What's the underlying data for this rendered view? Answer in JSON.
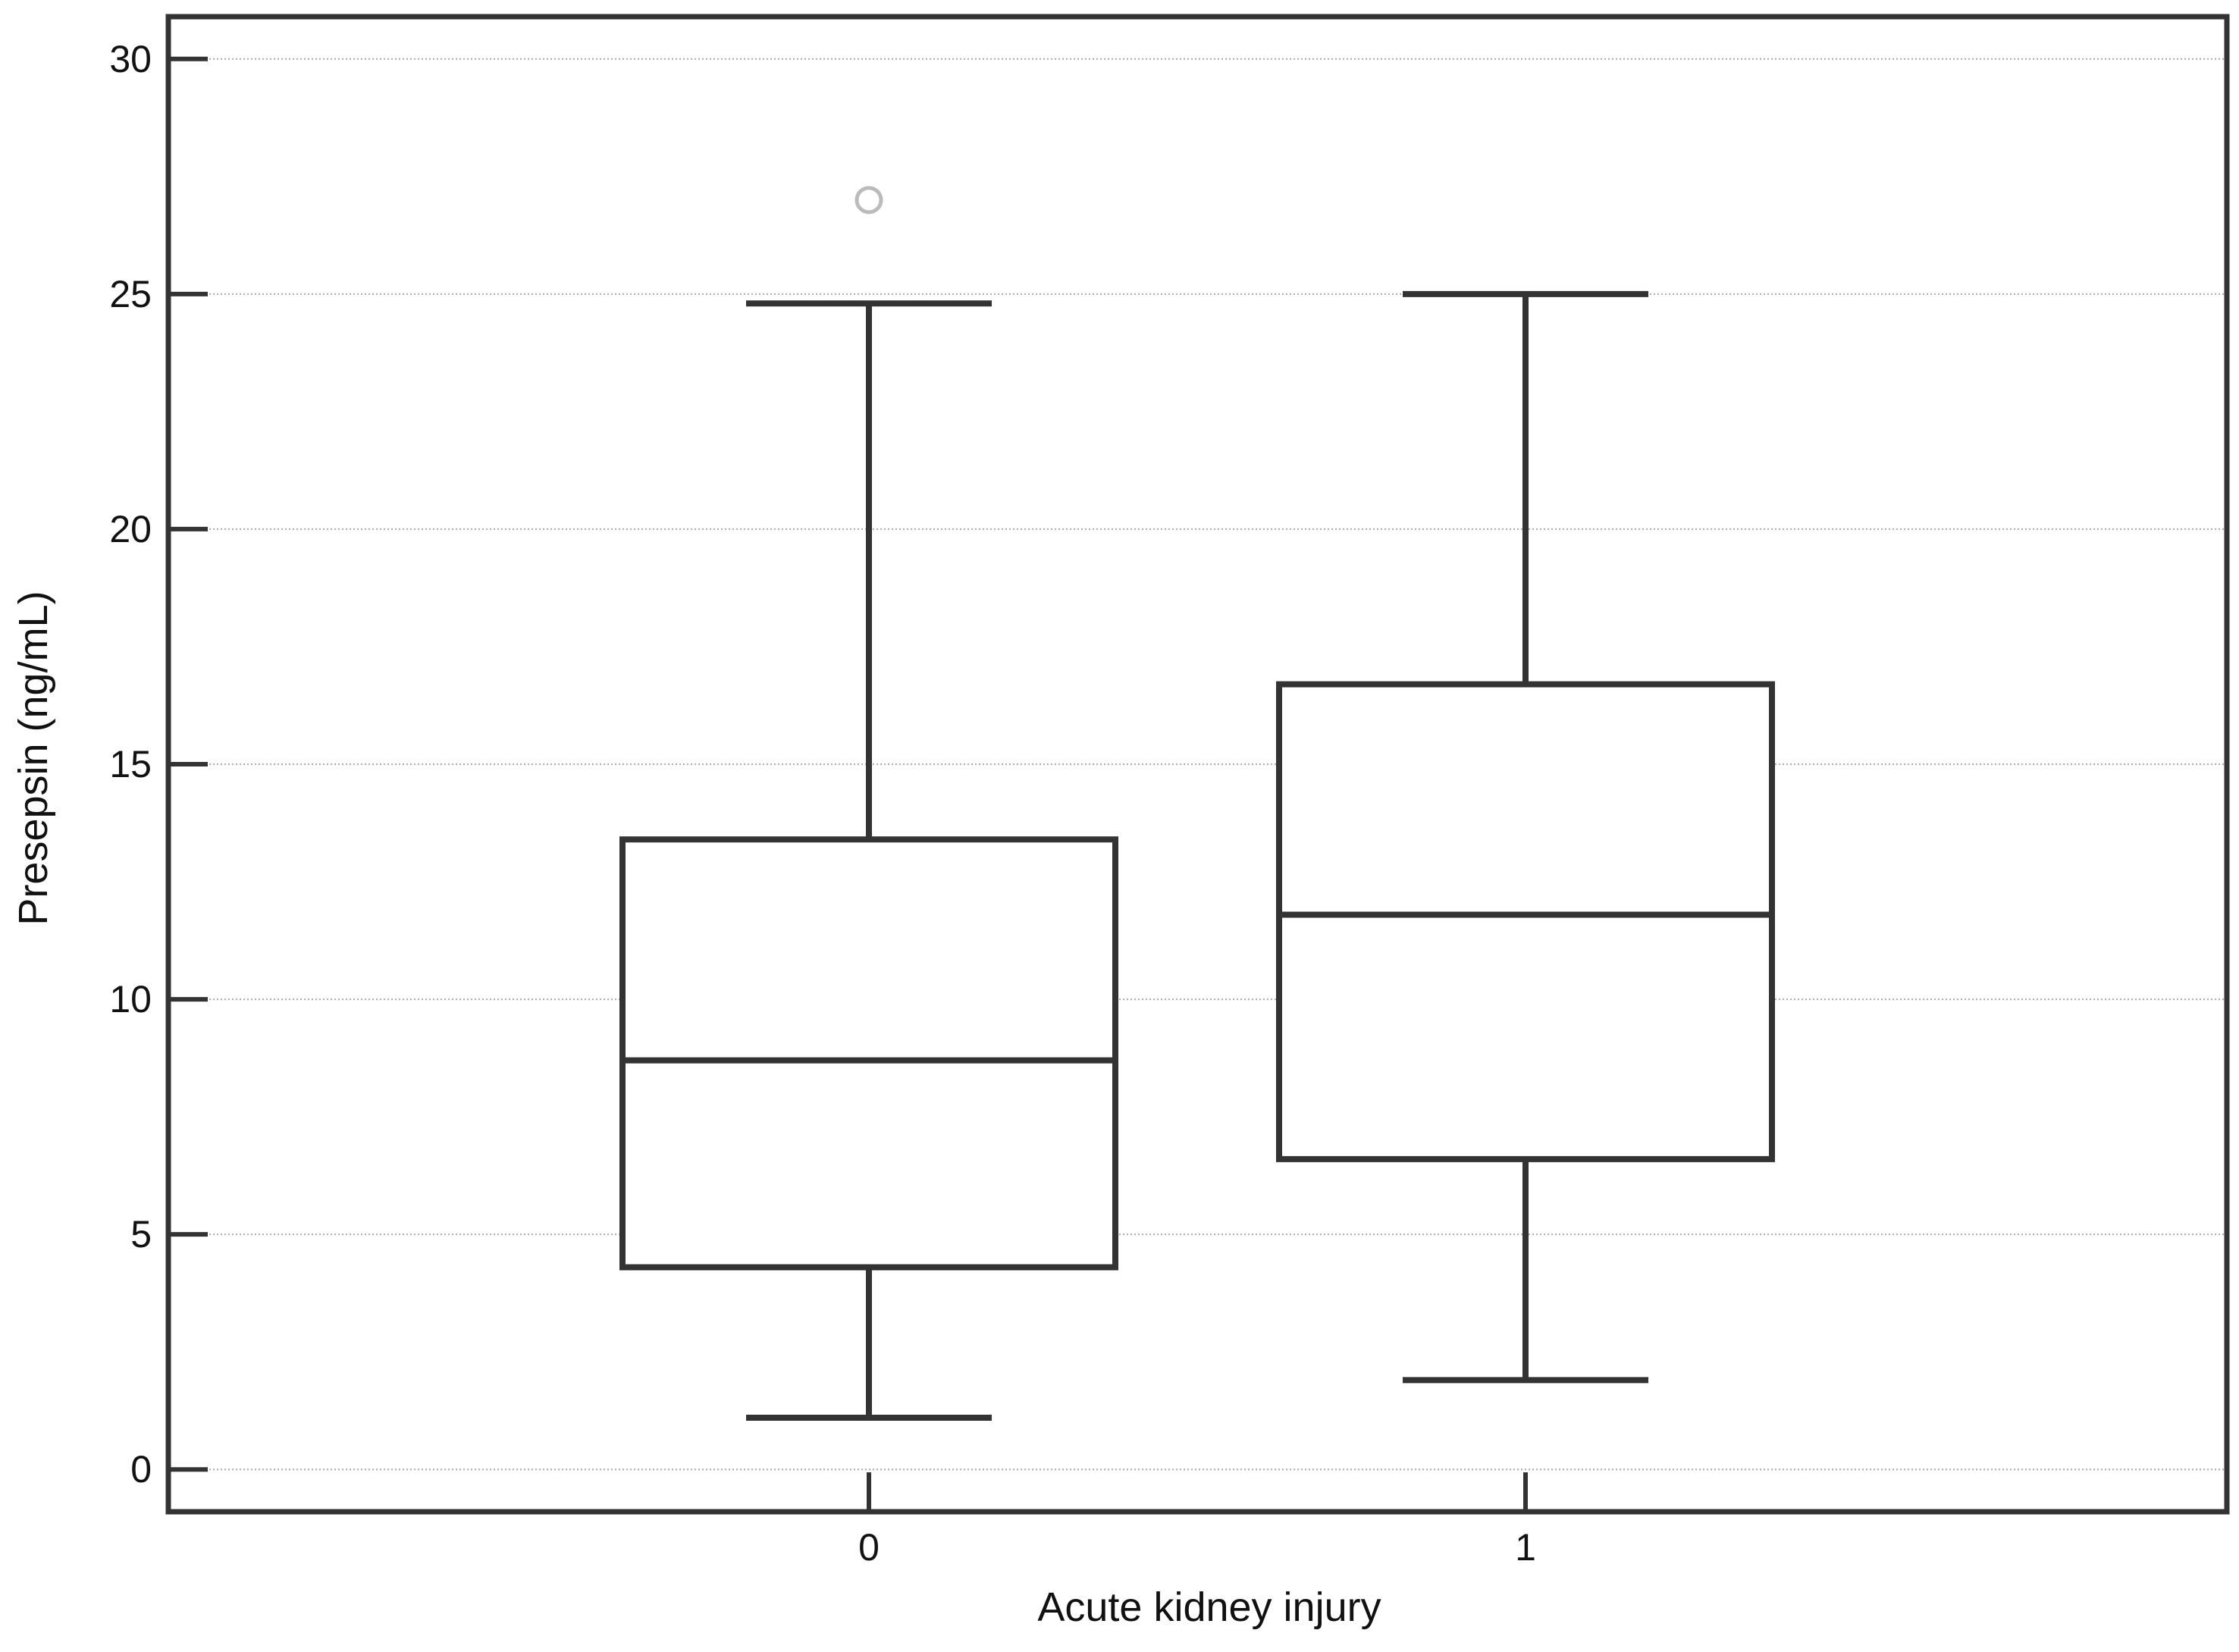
{
  "chart_data": {
    "type": "box",
    "xlabel": "Acute kidney injury",
    "ylabel": "Presepsin (ng/mL)",
    "ylim": [
      -0.9,
      30.9
    ],
    "yticks": [
      0,
      5,
      10,
      15,
      20,
      25,
      30
    ],
    "grid": "horizontal dotted",
    "categories": [
      "0",
      "1"
    ],
    "boxes": [
      {
        "category": "0",
        "whisker_low": 1.1,
        "q1": 4.3,
        "median": 8.7,
        "q3": 13.4,
        "whisker_high": 24.8,
        "outliers": [
          27.0
        ]
      },
      {
        "category": "1",
        "whisker_low": 1.9,
        "q1": 6.6,
        "median": 11.8,
        "q3": 16.7,
        "whisker_high": 25.0,
        "outliers": []
      }
    ],
    "colors": {
      "box_stroke": "#333333",
      "grid": "#aaaaaa",
      "outlier": "#bbbbbb",
      "frame": "#333333"
    }
  }
}
